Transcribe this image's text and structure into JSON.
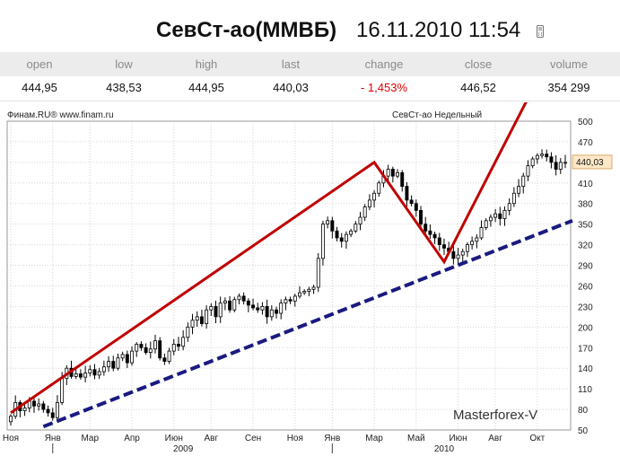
{
  "header": {
    "title": "СевСт-ао(ММВБ)",
    "datetime": "16.11.2010 11:54",
    "phone_icon": "mobile-phone-icon"
  },
  "quote": {
    "headers": [
      "open",
      "low",
      "high",
      "last",
      "change",
      "close",
      "volume"
    ],
    "values": [
      "444,95",
      "438,53",
      "444,95",
      "440,03",
      "- 1,453%",
      "446,52",
      "354 299"
    ]
  },
  "colors": {
    "change_negative": "#e00000",
    "uptrend_line": "#c00000",
    "support_line": "#1a1a80",
    "candle_up": "#ffffff",
    "candle_down": "#000000",
    "last_price_box": "#ffe8c8"
  },
  "chart_data": {
    "type": "candlestick",
    "source_label": "Финам.RU® www.finam.ru",
    "chart_label": "СевСт-ао Недельный",
    "watermark": "Masterforex-V",
    "last_price_label": "440,03",
    "y_ticks": [
      50,
      80,
      110,
      140,
      170,
      200,
      230,
      260,
      290,
      320,
      350,
      380,
      410,
      440,
      470,
      500
    ],
    "ylim": [
      50,
      500
    ],
    "x_ticks": [
      "Ноя",
      "Янв",
      "Мар",
      "Апр",
      "Июн",
      "Авг",
      "Сен",
      "Ноя",
      "Янв",
      "Мар",
      "Май",
      "Июн",
      "Авг",
      "Окт"
    ],
    "x_tick_weeks": [
      0,
      9,
      17,
      26,
      35,
      43,
      52,
      61,
      69,
      78,
      87,
      96,
      104,
      113
    ],
    "year_labels": [
      {
        "label": "2009",
        "week": 37
      },
      {
        "label": "2010",
        "week": 93
      }
    ],
    "year_separator_weeks": [
      9,
      69
    ],
    "weeks": 120,
    "closes": [
      70,
      90,
      78,
      82,
      92,
      85,
      88,
      80,
      75,
      68,
      90,
      125,
      140,
      128,
      132,
      127,
      133,
      138,
      130,
      135,
      142,
      150,
      140,
      155,
      160,
      148,
      165,
      175,
      170,
      163,
      168,
      180,
      155,
      150,
      165,
      175,
      172,
      185,
      200,
      210,
      215,
      205,
      225,
      230,
      215,
      235,
      238,
      225,
      240,
      245,
      238,
      232,
      228,
      225,
      230,
      215,
      225,
      220,
      235,
      240,
      238,
      245,
      250,
      252,
      255,
      258,
      300,
      350,
      355,
      340,
      330,
      325,
      335,
      340,
      350,
      360,
      375,
      385,
      395,
      410,
      420,
      430,
      420,
      425,
      405,
      385,
      380,
      370,
      350,
      340,
      335,
      330,
      320,
      315,
      310,
      300,
      305,
      310,
      320,
      325,
      330,
      345,
      355,
      360,
      365,
      358,
      370,
      380,
      395,
      405,
      420,
      435,
      445,
      450,
      452,
      448,
      440,
      430,
      440,
      440
    ]
  }
}
